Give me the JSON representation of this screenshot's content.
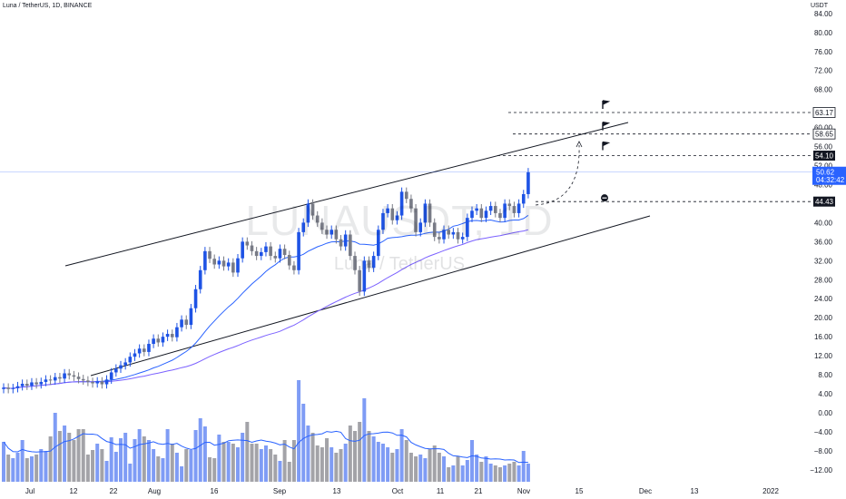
{
  "header": {
    "title": "Luna / TetherUS, 1D, BINANCE"
  },
  "watermark": {
    "symbol": "LUNAUSDT, 1D",
    "name": "Luna / TetherUS"
  },
  "price_axis": {
    "unit": "USDT",
    "ticks": [
      "84.00",
      "80.00",
      "76.00",
      "72.00",
      "68.00",
      "60.00",
      "56.00",
      "52.00",
      "48.00",
      "44.00",
      "40.00",
      "36.00",
      "32.00",
      "28.00",
      "24.00",
      "20.00",
      "16.00",
      "12.00",
      "8.00",
      "4.00",
      "0.00",
      "−4.00",
      "−8.00",
      "−12.00"
    ]
  },
  "time_axis": {
    "ticks": [
      "Jul",
      "12",
      "22",
      "Aug",
      "16",
      "Sep",
      "13",
      "Oct",
      "11",
      "21",
      "Nov",
      "15",
      "Dec",
      "13",
      "2022"
    ]
  },
  "price_tags": {
    "target_3": "63.17",
    "target_2": "58.65",
    "target_1": "54.10",
    "current": "50.62",
    "countdown": "04:32:42",
    "stop": "44.43"
  },
  "colors": {
    "up": "#1e53e5",
    "down": "#787b86",
    "ma_fast": "#2962ff",
    "ma_slow": "#7b61ff",
    "vol_up": "#7f9cf5",
    "vol_down": "#a3a3a8",
    "last_price": "#2962ff"
  },
  "chart_data": {
    "type": "candlestick",
    "symbol": "LUNAUSDT",
    "interval": "1D",
    "exchange": "BINANCE",
    "y_unit": "USDT",
    "ylim": [
      -14,
      86
    ],
    "levels": {
      "target_3": 63.17,
      "target_2": 58.65,
      "target_1": 54.1,
      "current": 50.62,
      "stop": 44.43
    },
    "close": [
      5.3,
      5.0,
      5.2,
      5.6,
      6.1,
      5.7,
      6.4,
      6.0,
      6.5,
      7.0,
      6.8,
      7.5,
      7.2,
      8.3,
      7.9,
      7.6,
      7.1,
      6.8,
      6.5,
      6.2,
      6.6,
      6.0,
      7.0,
      8.5,
      9.3,
      10.0,
      10.6,
      11.8,
      12.5,
      13.5,
      12.8,
      14.5,
      15.6,
      14.8,
      16.0,
      16.6,
      15.9,
      18.0,
      19.6,
      18.5,
      22.0,
      26.0,
      30.0,
      34.0,
      32.4,
      31.2,
      32.0,
      30.8,
      31.6,
      29.5,
      32.5,
      36.0,
      35.2,
      34.0,
      33.0,
      33.8,
      35.0,
      33.0,
      32.5,
      34.5,
      33.2,
      31.0,
      30.0,
      38.0,
      40.0,
      44.0,
      41.5,
      40.0,
      38.5,
      37.5,
      38.5,
      36.5,
      35.0,
      37.5,
      33.0,
      30.0,
      25.5,
      32.0,
      30.5,
      33.0,
      38.5,
      42.0,
      43.0,
      40.5,
      41.5,
      46.5,
      45.0,
      43.0,
      38.0,
      40.0,
      44.0,
      40.0,
      37.0,
      36.5,
      38.5,
      37.5,
      38.0,
      36.5,
      37.0,
      41.0,
      42.5,
      43.0,
      41.0,
      42.5,
      43.5,
      42.0,
      41.0,
      44.0,
      43.5,
      42.0,
      44.0,
      46.0,
      50.6
    ],
    "volume": [
      4.4,
      3.0,
      2.6,
      3.2,
      4.6,
      2.6,
      2.8,
      3.0,
      3.6,
      3.4,
      5.0,
      7.6,
      5.6,
      6.2,
      5.4,
      4.6,
      5.8,
      5.8,
      3.0,
      3.5,
      4.2,
      3.6,
      2.3,
      4.9,
      3.3,
      4.8,
      5.4,
      2.0,
      4.7,
      5.8,
      5.0,
      4.6,
      3.6,
      2.8,
      2.6,
      5.8,
      4.2,
      3.2,
      1.7,
      3.6,
      3.5,
      5.7,
      7.0,
      6.1,
      2.7,
      2.6,
      5.2,
      4.4,
      4.4,
      4.2,
      3.8,
      5.4,
      6.6,
      4.2,
      4.2,
      3.6,
      4.0,
      3.6,
      3.0,
      2.3,
      4.6,
      2.2,
      4.6,
      11.2,
      8.6,
      6.2,
      5.4,
      4.0,
      3.8,
      4.8,
      3.8,
      3.2,
      3.6,
      4.2,
      6.2,
      5.6,
      6.6,
      9.2,
      5.6,
      5.0,
      4.4,
      4.2,
      3.8,
      3.2,
      3.6,
      5.8,
      4.6,
      3.2,
      2.8,
      3.0,
      2.6,
      3.6,
      4.0,
      3.2,
      2.8,
      1.6,
      1.8,
      2.8,
      1.8,
      2.4,
      4.6,
      3.0,
      2.2,
      2.8,
      2.0,
      1.8,
      1.6,
      1.8,
      2.0,
      2.2,
      1.8,
      3.4,
      2.0
    ]
  }
}
